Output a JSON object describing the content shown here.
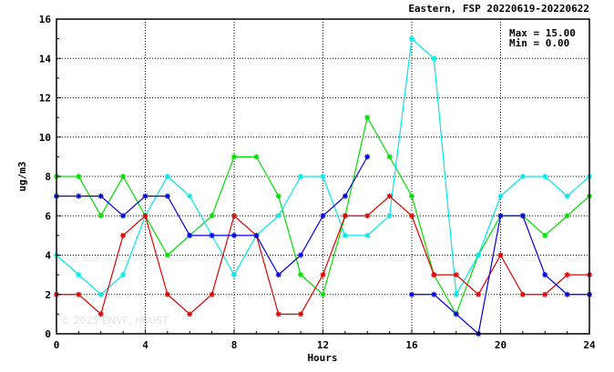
{
  "chart_data": {
    "type": "line",
    "title": "Eastern, FSP 20220619-20220622",
    "xlabel": "Hours",
    "ylabel": "ug/m3",
    "xlim": [
      0,
      24
    ],
    "ylim": [
      0,
      16
    ],
    "xticks": [
      0,
      4,
      8,
      12,
      16,
      20,
      24
    ],
    "yticks": [
      0,
      2,
      4,
      6,
      8,
      10,
      12,
      14,
      16
    ],
    "grid": true,
    "stats": {
      "max_label": "Max = 15.00",
      "min_label": "Min =  0.00"
    },
    "watermark": "© 2025 ENVF, HKUST",
    "x": [
      0,
      1,
      2,
      3,
      4,
      5,
      6,
      7,
      8,
      9,
      10,
      11,
      12,
      13,
      14,
      15,
      16,
      17,
      18,
      19,
      20,
      21,
      22,
      23,
      24
    ],
    "series": [
      {
        "color": "#00e000",
        "values": [
          8,
          8,
          6,
          8,
          6,
          4,
          5,
          6,
          9,
          9,
          7,
          3,
          2,
          6,
          11,
          9,
          7,
          3,
          1,
          4,
          6,
          6,
          5,
          6,
          7
        ]
      },
      {
        "color": "#00e8e8",
        "values": [
          4,
          3,
          2,
          3,
          6,
          8,
          7,
          5,
          3,
          5,
          6,
          8,
          8,
          5,
          5,
          6,
          15,
          14,
          2,
          4,
          7,
          8,
          8,
          7,
          8
        ]
      },
      {
        "color": "#e00000",
        "values": [
          2,
          2,
          1,
          5,
          6,
          2,
          1,
          2,
          6,
          5,
          1,
          1,
          3,
          6,
          6,
          7,
          6,
          3,
          3,
          2,
          4,
          2,
          2,
          3,
          3
        ]
      },
      {
        "color": "#0000e0",
        "values": [
          7,
          7,
          7,
          6,
          7,
          7,
          5,
          5,
          5,
          5,
          3,
          4,
          6,
          7,
          9,
          null,
          2,
          2,
          1,
          0,
          6,
          6,
          3,
          2,
          2
        ]
      }
    ]
  }
}
